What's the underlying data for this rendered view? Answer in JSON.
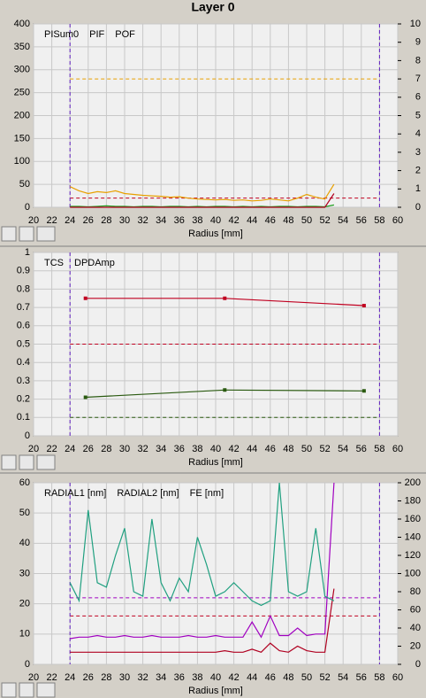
{
  "title": "Layer 0",
  "chart_data": [
    {
      "type": "line",
      "xlabel": "Radius [mm]",
      "xlim": [
        20,
        60
      ],
      "xticks": [
        20,
        22,
        24,
        26,
        28,
        30,
        32,
        34,
        36,
        38,
        40,
        42,
        44,
        46,
        48,
        50,
        52,
        54,
        56,
        58,
        60
      ],
      "ylim": [
        0,
        400
      ],
      "yticks": [
        0,
        50,
        100,
        150,
        200,
        250,
        300,
        350,
        400
      ],
      "y2lim": [
        0,
        10
      ],
      "y2ticks": [
        0,
        1,
        2,
        3,
        4,
        5,
        6,
        7,
        8,
        9,
        10
      ],
      "grid": true,
      "x": [
        24,
        25,
        26,
        27,
        28,
        29,
        30,
        31,
        32,
        33,
        34,
        35,
        36,
        37,
        38,
        39,
        40,
        41,
        42,
        43,
        44,
        45,
        46,
        47,
        48,
        49,
        50,
        51,
        52,
        53
      ],
      "series": [
        {
          "name": "PISum0",
          "color": "#e8a000",
          "values": [
            45,
            36,
            30,
            34,
            32,
            36,
            30,
            28,
            26,
            25,
            24,
            22,
            23,
            20,
            18,
            17,
            16,
            17,
            15,
            16,
            14,
            15,
            18,
            16,
            14,
            20,
            28,
            22,
            18,
            50
          ]
        },
        {
          "name": "PIF",
          "color": "#20a020",
          "values": [
            2,
            2,
            1,
            2,
            3,
            2,
            2,
            1,
            2,
            2,
            1,
            2,
            2,
            1,
            2,
            1,
            2,
            2,
            1,
            2,
            1,
            2,
            1,
            2,
            2,
            1,
            2,
            2,
            1,
            5
          ]
        },
        {
          "name": "POF",
          "color": "#b00020",
          "values": [
            0,
            0,
            0,
            0,
            0,
            0,
            0,
            0,
            0,
            0,
            0,
            0,
            0,
            0,
            0,
            0,
            0,
            0,
            0,
            0,
            0,
            0,
            0,
            0,
            0,
            0,
            0,
            0,
            0,
            30
          ]
        }
      ],
      "reference_lines": [
        {
          "value": 280,
          "color": "#e8a000"
        },
        {
          "value": 20,
          "color": "#c00020"
        }
      ],
      "vlines": [
        24,
        58
      ]
    },
    {
      "type": "line",
      "xlabel": "Radius [mm]",
      "xlim": [
        20,
        60
      ],
      "xticks": [
        20,
        22,
        24,
        26,
        28,
        30,
        32,
        34,
        36,
        38,
        40,
        42,
        44,
        46,
        48,
        50,
        52,
        54,
        56,
        58,
        60
      ],
      "ylim": [
        0,
        1
      ],
      "yticks": [
        0,
        0.1,
        0.2,
        0.3,
        0.4,
        0.5,
        0.6,
        0.7,
        0.8,
        0.9,
        1
      ],
      "grid": true,
      "x": [
        25.7,
        41,
        56.3
      ],
      "series": [
        {
          "name": "TCS",
          "color": "#2a5a10",
          "values": [
            0.21,
            0.25,
            0.245
          ]
        },
        {
          "name": "DPDAmp",
          "color": "#c00020",
          "values": [
            0.75,
            0.75,
            0.71
          ]
        }
      ],
      "reference_lines": [
        {
          "value": 0.5,
          "color": "#c00020"
        },
        {
          "value": 0.1,
          "color": "#2a5a10"
        }
      ],
      "vlines": [
        24,
        58
      ]
    },
    {
      "type": "line",
      "xlabel": "Radius [mm]",
      "xlim": [
        20,
        60
      ],
      "xticks": [
        20,
        22,
        24,
        26,
        28,
        30,
        32,
        34,
        36,
        38,
        40,
        42,
        44,
        46,
        48,
        50,
        52,
        54,
        56,
        58,
        60
      ],
      "ylim": [
        0,
        60
      ],
      "yticks": [
        0,
        10,
        20,
        30,
        40,
        50,
        60
      ],
      "y2lim": [
        0,
        200
      ],
      "y2ticks": [
        0,
        20,
        40,
        60,
        80,
        100,
        120,
        140,
        160,
        180,
        200
      ],
      "grid": true,
      "x": [
        24,
        25,
        26,
        27,
        28,
        29,
        30,
        31,
        32,
        33,
        34,
        35,
        36,
        37,
        38,
        39,
        40,
        41,
        42,
        43,
        44,
        45,
        46,
        47,
        48,
        49,
        50,
        51,
        52,
        53
      ],
      "series": [
        {
          "name": "RADIAL1 [nm]",
          "color": "#a000c0",
          "values": [
            8.5,
            9,
            9,
            9.5,
            9,
            9,
            9.5,
            9,
            9,
            9.5,
            9,
            9,
            9,
            9.5,
            9,
            9,
            9.5,
            9,
            9,
            9,
            14,
            9,
            16,
            9.5,
            9.5,
            12,
            9.5,
            10,
            10,
            60
          ]
        },
        {
          "name": "RADIAL2 [nm]",
          "color": "#b00020",
          "values": [
            4,
            4,
            4,
            4,
            4,
            4,
            4,
            4,
            4,
            4,
            4,
            4,
            4,
            4,
            4,
            4,
            4,
            4.5,
            4,
            4,
            5,
            4,
            7,
            4.5,
            4,
            6,
            4.5,
            4,
            4,
            25
          ]
        },
        {
          "name": "FE [nm]",
          "color": "#20a080",
          "axis": "y2",
          "values": [
            90,
            70,
            170,
            90,
            85,
            120,
            150,
            80,
            75,
            160,
            90,
            70,
            95,
            80,
            140,
            110,
            75,
            80,
            90,
            80,
            70,
            65,
            70,
            200,
            80,
            75,
            80,
            150,
            75,
            70
          ]
        }
      ],
      "reference_lines": [
        {
          "value": 22,
          "color": "#a000c0"
        },
        {
          "value": 16,
          "color": "#c00020"
        }
      ],
      "vlines": [
        24,
        58
      ]
    }
  ]
}
